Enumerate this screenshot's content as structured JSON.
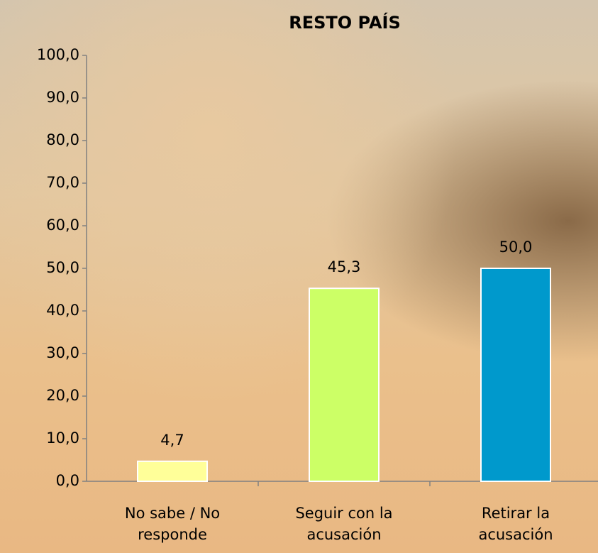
{
  "chart_data": {
    "type": "bar",
    "title": "RESTO PAÍS",
    "categories": [
      "No sabe / No responde",
      "Seguir con la acusación",
      "Retirar la acusación"
    ],
    "values": [
      4.7,
      45.3,
      50.0
    ],
    "value_labels": [
      "4,7",
      "45,3",
      "50,0"
    ],
    "colors": [
      "#ffff99",
      "#ccff66",
      "#0099cc"
    ],
    "ylim": [
      0,
      100
    ],
    "yticks": [
      {
        "value": 0,
        "label": "0,0"
      },
      {
        "value": 10,
        "label": "10,0"
      },
      {
        "value": 20,
        "label": "20,0"
      },
      {
        "value": 30,
        "label": "30,0"
      },
      {
        "value": 40,
        "label": "40,0"
      },
      {
        "value": 50,
        "label": "50,0"
      },
      {
        "value": 60,
        "label": "60,0"
      },
      {
        "value": 70,
        "label": "70,0"
      },
      {
        "value": 80,
        "label": "80,0"
      },
      {
        "value": 90,
        "label": "90,0"
      },
      {
        "value": 100,
        "label": "100,0"
      }
    ],
    "grid": false
  }
}
